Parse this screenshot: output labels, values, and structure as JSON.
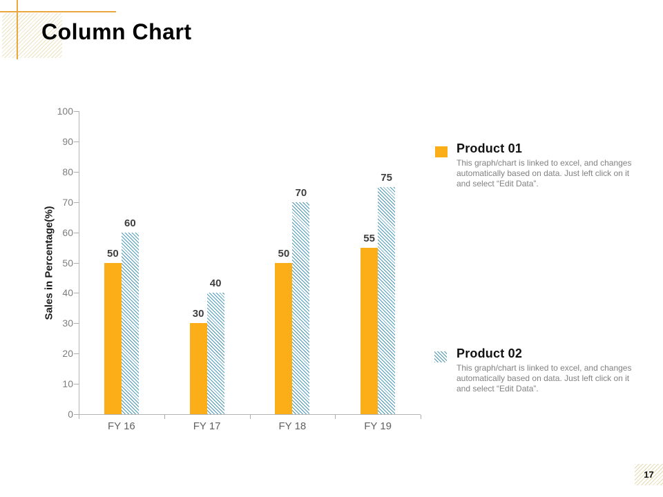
{
  "slide": {
    "title": "Column Chart",
    "page_number": "17"
  },
  "chart_data": {
    "type": "bar",
    "title": "",
    "categories": [
      "FY 16",
      "FY 17",
      "FY 18",
      "FY 19"
    ],
    "series": [
      {
        "name": "Product 01",
        "values": [
          50,
          30,
          50,
          55
        ],
        "color": "#FBAE17",
        "pattern": "solid"
      },
      {
        "name": "Product 02",
        "values": [
          60,
          40,
          70,
          75
        ],
        "color": "#4A9AB8",
        "pattern": "diagonal-hatch"
      }
    ],
    "xlabel": "",
    "ylabel": "Sales in Percentage(%)",
    "ylim": [
      0,
      100
    ],
    "yticks": [
      0,
      10,
      20,
      30,
      40,
      50,
      60,
      70,
      80,
      90,
      100
    ],
    "grid": false,
    "data_labels": true,
    "legend_position": "right"
  },
  "legend": {
    "items": [
      {
        "label": "Product 01",
        "description": "This graph/chart is linked to excel, and changes automatically based on data. Just left click on it and select “Edit Data”."
      },
      {
        "label": "Product 02",
        "description": "This graph/chart is linked to excel, and changes automatically based on data. Just left click on it and select “Edit Data”."
      }
    ]
  },
  "colors": {
    "bar_orange": "#FBAE17",
    "bar_teal": "#4A9AB8",
    "decor_line": "#EAA73D",
    "decor_hatch": "#D6BE6E",
    "axis_gray": "#B3B3B3",
    "tick_label_gray": "#7D7D7D",
    "data_label_gray": "#3E3E3E",
    "legend_body_gray": "#818181"
  }
}
